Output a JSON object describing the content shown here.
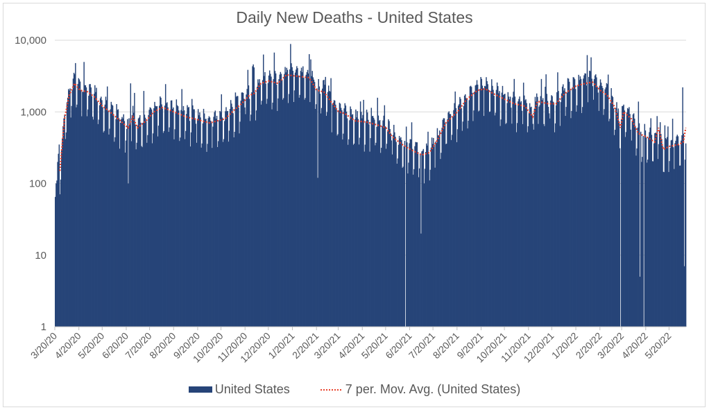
{
  "chart_data": {
    "type": "bar",
    "title": "Daily New Deaths - United States",
    "xlabel": "",
    "ylabel": "",
    "yscale": "log",
    "ylim": [
      1,
      10000
    ],
    "yticks": [
      1,
      10,
      100,
      1000,
      10000
    ],
    "ytick_labels": [
      "1",
      "10",
      "100",
      "1,000",
      "10,000"
    ],
    "grid": true,
    "legend_position": "bottom",
    "x_start": "3/20/20",
    "x_end": "6/10/22",
    "xtick_labels": [
      "3/20/20",
      "4/20/20",
      "5/20/20",
      "6/20/20",
      "7/20/20",
      "8/20/20",
      "9/20/20",
      "10/20/20",
      "11/20/20",
      "12/20/20",
      "1/20/21",
      "2/20/21",
      "3/20/21",
      "4/20/21",
      "5/20/21",
      "6/20/21",
      "7/20/21",
      "8/20/21",
      "9/20/21",
      "10/20/21",
      "11/20/21",
      "12/20/21",
      "1/20/22",
      "2/20/22",
      "3/20/22",
      "4/20/22",
      "5/20/22"
    ],
    "series": [
      {
        "name": "United States",
        "kind": "bar",
        "color": "#264478",
        "note": "daily values; approximated by weekly pattern around moving average",
        "notable_points": [
          {
            "date": "4/15/20",
            "value": 4800
          },
          {
            "date": "6/25/20",
            "value": 2500
          },
          {
            "date": "6/22/20",
            "value": 100
          },
          {
            "date": "2/12/21",
            "value": 5400
          },
          {
            "date": "2/21/21",
            "value": 120
          },
          {
            "date": "6/14/21",
            "value": 1
          },
          {
            "date": "7/04/21",
            "value": 20
          },
          {
            "date": "2/03/22",
            "value": 6200
          },
          {
            "date": "3/18/22",
            "value": 1
          },
          {
            "date": "4/12/22",
            "value": 5
          },
          {
            "date": "4/17/22",
            "value": 1
          },
          {
            "date": "6/06/22",
            "value": 2200
          },
          {
            "date": "6/08/22",
            "value": 7
          }
        ]
      },
      {
        "name": "7 per. Mov. Avg. (United States)",
        "kind": "line",
        "color": "#e8402a",
        "style": "dotted",
        "points": [
          [
            "3/26/20",
            150
          ],
          [
            "4/01/20",
            800
          ],
          [
            "4/07/20",
            1700
          ],
          [
            "4/14/20",
            2500
          ],
          [
            "4/21/20",
            2000
          ],
          [
            "5/01/20",
            1900
          ],
          [
            "5/10/20",
            1600
          ],
          [
            "5/20/20",
            1200
          ],
          [
            "6/01/20",
            950
          ],
          [
            "6/15/20",
            700
          ],
          [
            "6/22/20",
            600
          ],
          [
            "6/28/20",
            850
          ],
          [
            "7/04/20",
            600
          ],
          [
            "7/15/20",
            750
          ],
          [
            "7/25/20",
            1000
          ],
          [
            "8/05/20",
            1150
          ],
          [
            "8/15/20",
            1050
          ],
          [
            "8/25/20",
            950
          ],
          [
            "9/05/20",
            850
          ],
          [
            "9/15/20",
            800
          ],
          [
            "9/25/20",
            750
          ],
          [
            "10/05/20",
            700
          ],
          [
            "10/15/20",
            750
          ],
          [
            "10/25/20",
            800
          ],
          [
            "11/05/20",
            1050
          ],
          [
            "11/15/20",
            1300
          ],
          [
            "11/25/20",
            1700
          ],
          [
            "12/01/20",
            1800
          ],
          [
            "12/10/20",
            2500
          ],
          [
            "12/20/20",
            2700
          ],
          [
            "1/01/21",
            2500
          ],
          [
            "1/12/21",
            3300
          ],
          [
            "1/20/21",
            3200
          ],
          [
            "1/31/21",
            3100
          ],
          [
            "2/10/21",
            3000
          ],
          [
            "2/20/21",
            2000
          ],
          [
            "3/01/21",
            1900
          ],
          [
            "3/10/21",
            1400
          ],
          [
            "3/20/21",
            1000
          ],
          [
            "3/28/21",
            950
          ],
          [
            "4/10/21",
            750
          ],
          [
            "4/25/21",
            720
          ],
          [
            "5/10/21",
            650
          ],
          [
            "5/20/21",
            600
          ],
          [
            "5/28/21",
            450
          ],
          [
            "6/10/21",
            350
          ],
          [
            "6/20/21",
            300
          ],
          [
            "7/05/21",
            250
          ],
          [
            "7/15/21",
            270
          ],
          [
            "7/25/21",
            400
          ],
          [
            "8/05/21",
            700
          ],
          [
            "8/20/21",
            1000
          ],
          [
            "9/01/21",
            1500
          ],
          [
            "9/15/21",
            2000
          ],
          [
            "9/25/21",
            2100
          ],
          [
            "10/05/21",
            1800
          ],
          [
            "10/20/21",
            1500
          ],
          [
            "11/01/21",
            1300
          ],
          [
            "11/15/21",
            1200
          ],
          [
            "11/25/21",
            850
          ],
          [
            "12/01/21",
            1400
          ],
          [
            "12/15/21",
            1300
          ],
          [
            "12/25/21",
            1300
          ],
          [
            "1/05/22",
            1800
          ],
          [
            "1/20/22",
            2300
          ],
          [
            "2/01/22",
            2500
          ],
          [
            "2/10/22",
            2600
          ],
          [
            "2/20/22",
            2000
          ],
          [
            "3/01/22",
            1700
          ],
          [
            "3/10/22",
            1200
          ],
          [
            "3/18/22",
            600
          ],
          [
            "3/22/22",
            1000
          ],
          [
            "4/01/22",
            800
          ],
          [
            "4/10/22",
            500
          ],
          [
            "4/20/22",
            450
          ],
          [
            "5/01/22",
            380
          ],
          [
            "5/06/22",
            600
          ],
          [
            "5/12/22",
            300
          ],
          [
            "5/20/22",
            330
          ],
          [
            "6/01/22",
            350
          ],
          [
            "6/07/22",
            380
          ],
          [
            "6/10/22",
            600
          ]
        ]
      }
    ]
  },
  "legend": {
    "items": [
      {
        "label": "United States"
      },
      {
        "label": "7 per. Mov. Avg. (United States)"
      }
    ]
  }
}
